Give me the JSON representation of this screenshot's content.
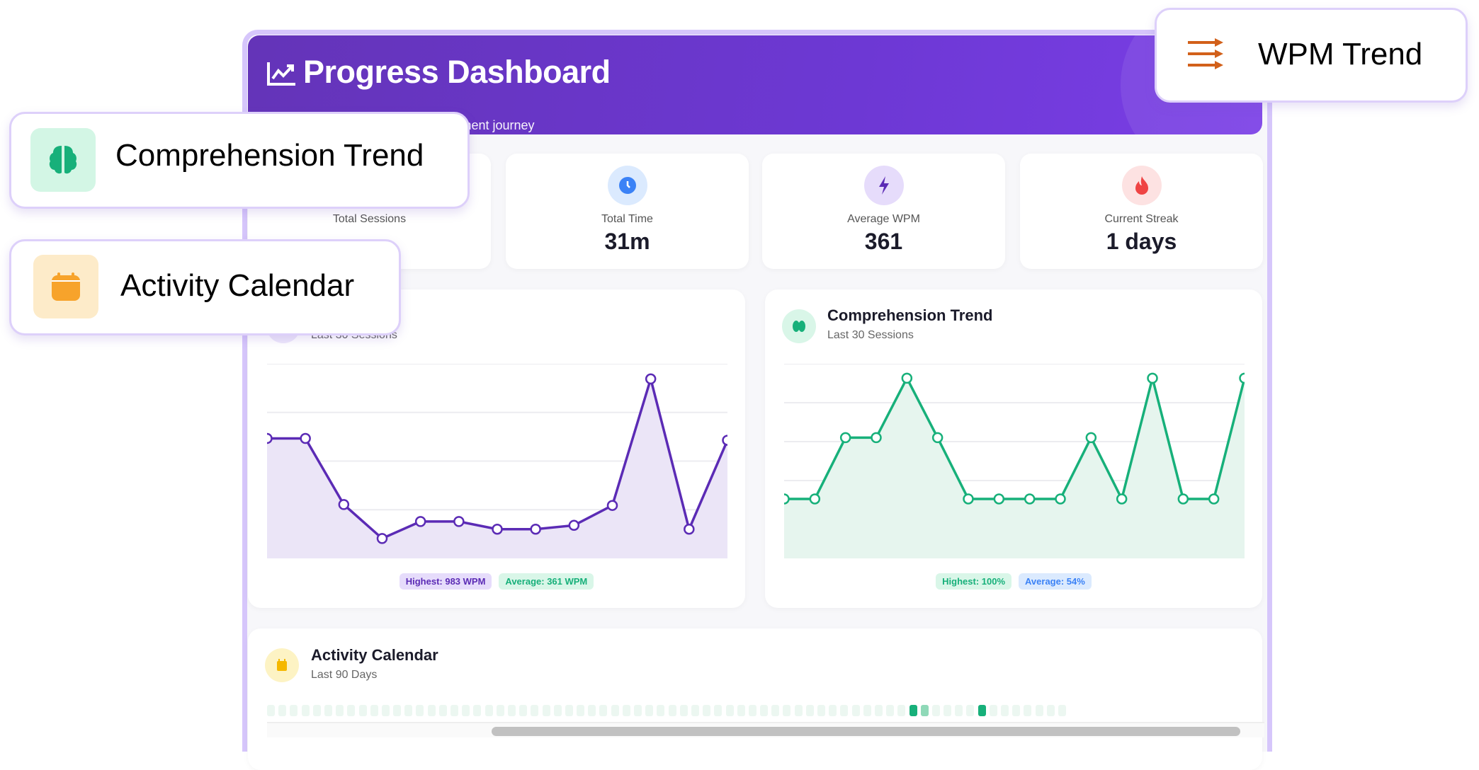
{
  "header": {
    "title": "Progress Dashboard",
    "subtitle": "Track your reading speed improvement journey"
  },
  "stats": [
    {
      "label": "Total Sessions",
      "value": "",
      "icon": "sessions-icon"
    },
    {
      "label": "Total Time",
      "value": "31m",
      "icon": "clock-icon"
    },
    {
      "label": "Average WPM",
      "value": "361",
      "icon": "lightning-icon"
    },
    {
      "label": "Current Streak",
      "value": "1 days",
      "icon": "fire-icon"
    }
  ],
  "wpm_card": {
    "subtitle": "Last 30 Sessions",
    "highest": "Highest: 983 WPM",
    "average": "Average: 361 WPM"
  },
  "comp_card": {
    "title": "Comprehension Trend",
    "subtitle": "Last 30 Sessions",
    "highest": "Highest: 100%",
    "average": "Average: 54%"
  },
  "activity": {
    "title": "Activity Calendar",
    "subtitle": "Last 90 Days",
    "visible_cells": 70,
    "active_days": {
      "56": "high",
      "57": "low",
      "62": "high"
    }
  },
  "callouts": {
    "comprehension": "Comprehension Trend",
    "activity": "Activity Calendar",
    "wpm": "WPM Trend"
  },
  "colors": {
    "purple": "#5b2bb5",
    "green": "#17b07a",
    "header": "#6d38d4"
  },
  "chart_data": [
    {
      "type": "line",
      "title": "WPM Trend",
      "ylabel": "WPM",
      "ylim": [
        0,
        1066
      ],
      "values": [
        657,
        657,
        295,
        109,
        202,
        202,
        160,
        160,
        181,
        290,
        983,
        160,
        647
      ],
      "color": "#5b2bb5",
      "fill": "#ebe5f7",
      "grid_lines": 5
    },
    {
      "type": "line",
      "title": "Comprehension Trend",
      "ylabel": "%",
      "ylim": [
        0,
        108
      ],
      "values": [
        33,
        33,
        67,
        67,
        100,
        67,
        33,
        33,
        33,
        33,
        67,
        33,
        100,
        33,
        33,
        100
      ],
      "color": "#17b07a",
      "fill": "#e6f5ee",
      "grid_lines": 6
    }
  ]
}
